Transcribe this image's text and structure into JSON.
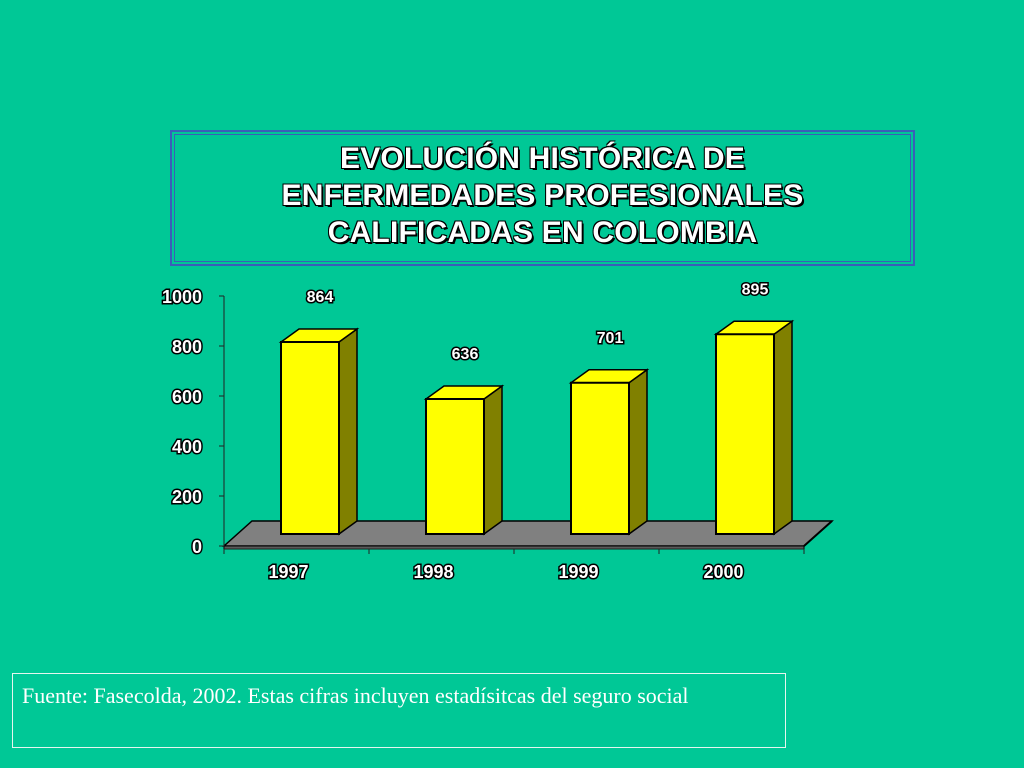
{
  "chart_data": {
    "type": "bar",
    "title": "EVOLUCIÓN HISTÓRICA DE ENFERMEDADES PROFESIONALES CALIFICADAS EN COLOMBIA",
    "title_lines": [
      "EVOLUCIÓN HISTÓRICA DE",
      "ENFERMEDADES PROFESIONALES",
      "CALIFICADAS EN COLOMBIA"
    ],
    "categories": [
      "1997",
      "1998",
      "1999",
      "2000"
    ],
    "values": [
      864,
      636,
      701,
      895
    ],
    "ylim": [
      0,
      1000
    ],
    "yticks": [
      0,
      200,
      400,
      600,
      800,
      1000
    ],
    "xlabel": "",
    "ylabel": "",
    "grid": false,
    "style": "3d",
    "bar_color": "#FFFF00",
    "bar_side_color": "#808000",
    "floor_color": "#808080"
  },
  "source": {
    "text": "Fuente: Fasecolda, 2002.  Estas cifras incluyen estadísitcas del seguro social"
  },
  "colors": {
    "background": "#00C896",
    "title_border": "#3b5fb8",
    "text": "#FFFFFF",
    "text_outline": "#000000"
  }
}
